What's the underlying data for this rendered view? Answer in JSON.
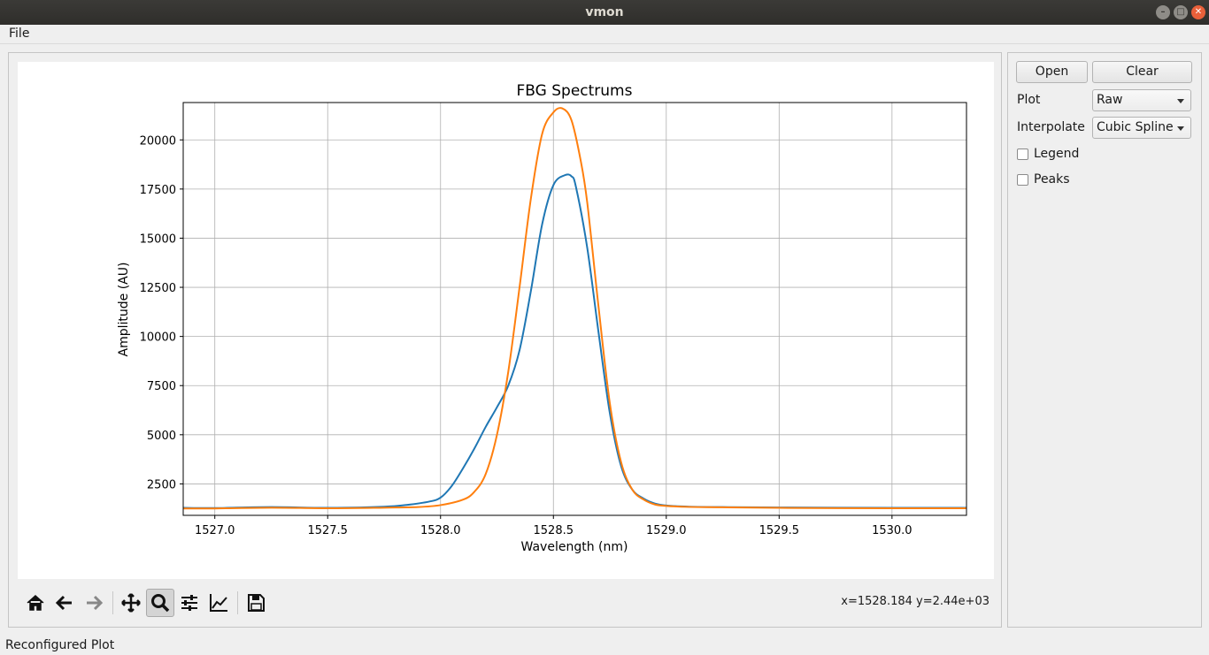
{
  "window": {
    "title": "vmon"
  },
  "menu": {
    "file_label": "File"
  },
  "toolbar": {
    "buttons": [
      "home-icon",
      "back-icon",
      "forward-icon",
      "pan-icon",
      "zoom-icon",
      "configure-subplots-icon",
      "edit-axis-icon",
      "save-icon"
    ],
    "active": "zoom-icon",
    "coords": "x=1528.184 y=2.44e+03"
  },
  "controls": {
    "open_label": "Open",
    "clear_label": "Clear",
    "plot_label": "Plot",
    "plot_value": "Raw",
    "interpolate_label": "Interpolate",
    "interpolate_value": "Cubic Spline",
    "legend_label": "Legend",
    "legend_checked": false,
    "peaks_label": "Peaks",
    "peaks_checked": false
  },
  "status": {
    "text": "Reconfigured Plot"
  },
  "chart_data": {
    "type": "line",
    "title": "FBG Spectrums",
    "xlabel": "Wavelength (nm)",
    "ylabel": "Amplitude (AU)",
    "xlim": [
      1526.86,
      1530.33
    ],
    "ylim": [
      900,
      21900
    ],
    "xticks": [
      "1527.0",
      "1527.5",
      "1528.0",
      "1528.5",
      "1529.0",
      "1529.5",
      "1530.0"
    ],
    "yticks": [
      "2500",
      "5000",
      "7500",
      "10000",
      "12500",
      "15000",
      "17500",
      "20000"
    ],
    "grid": true,
    "colors": {
      "series1": "#1f77b4",
      "series2": "#ff7f0e"
    },
    "series": [
      {
        "x": [
          1526.86,
          1527.0,
          1527.25,
          1527.5,
          1527.75,
          1527.85,
          1527.95,
          1528.0,
          1528.05,
          1528.1,
          1528.15,
          1528.2,
          1528.25,
          1528.3,
          1528.35,
          1528.4,
          1528.45,
          1528.5,
          1528.55,
          1528.58,
          1528.6,
          1528.65,
          1528.7,
          1528.75,
          1528.8,
          1528.85,
          1528.9,
          1528.95,
          1529.0,
          1529.1,
          1529.25,
          1529.5,
          1530.0,
          1530.33
        ],
        "y": [
          1280,
          1270,
          1320,
          1280,
          1340,
          1430,
          1600,
          1800,
          2400,
          3300,
          4300,
          5400,
          6400,
          7500,
          9300,
          12300,
          15700,
          17700,
          18200,
          18150,
          17600,
          14500,
          10200,
          6100,
          3400,
          2200,
          1750,
          1500,
          1400,
          1340,
          1320,
          1300,
          1280,
          1280
        ]
      },
      {
        "x": [
          1526.86,
          1527.0,
          1527.25,
          1527.5,
          1527.75,
          1527.9,
          1528.0,
          1528.1,
          1528.15,
          1528.2,
          1528.25,
          1528.3,
          1528.35,
          1528.4,
          1528.45,
          1528.5,
          1528.54,
          1528.58,
          1528.62,
          1528.65,
          1528.7,
          1528.75,
          1528.8,
          1528.85,
          1528.9,
          1528.95,
          1529.0,
          1529.1,
          1529.25,
          1529.5,
          1530.0,
          1530.33
        ],
        "y": [
          1250,
          1250,
          1290,
          1260,
          1290,
          1320,
          1420,
          1700,
          2100,
          3000,
          5000,
          8200,
          12500,
          17000,
          20300,
          21400,
          21600,
          21000,
          19000,
          16800,
          11500,
          6600,
          3600,
          2200,
          1700,
          1450,
          1380,
          1330,
          1310,
          1280,
          1260,
          1260
        ]
      }
    ]
  }
}
